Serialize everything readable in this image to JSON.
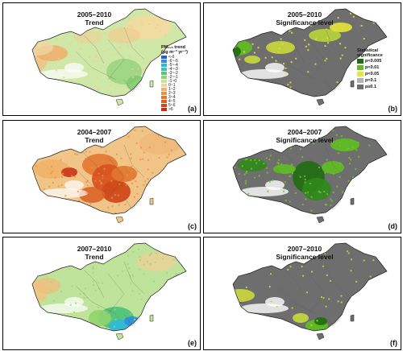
{
  "panels": [
    {
      "id": "a",
      "label": "(a)",
      "title_line1": "2005–2010",
      "title_line2": "Trend",
      "kind": "trend",
      "variant": "a"
    },
    {
      "id": "b",
      "label": "(b)",
      "title_line1": "2005–2010",
      "title_line2": "Significance level",
      "kind": "sig",
      "variant": "b"
    },
    {
      "id": "c",
      "label": "(c)",
      "title_line1": "2004–2007",
      "title_line2": "Trend",
      "kind": "trend",
      "variant": "c"
    },
    {
      "id": "d",
      "label": "(d)",
      "title_line1": "2004–2007",
      "title_line2": "Significance level",
      "kind": "sig",
      "variant": "d"
    },
    {
      "id": "e",
      "label": "(e)",
      "title_line1": "2007–2010",
      "title_line2": "Trend",
      "kind": "trend",
      "variant": "e"
    },
    {
      "id": "f",
      "label": "(f)",
      "title_line1": "2007–2010",
      "title_line2": "Significance level",
      "kind": "sig",
      "variant": "f"
    }
  ],
  "trend_legend": {
    "title_line1": "PM₂.₅ trend",
    "title_line2": "(μg m⁻³ yr⁻¹)",
    "items": [
      {
        "label": "<-6",
        "color": "#1f5fd6"
      },
      {
        "label": "-6~-5",
        "color": "#2b8fe0"
      },
      {
        "label": "-5~-4",
        "color": "#2fb9d8"
      },
      {
        "label": "-4~-3",
        "color": "#39c7b2"
      },
      {
        "label": "-3~-2",
        "color": "#56c773"
      },
      {
        "label": "-2~-1",
        "color": "#8fd46e"
      },
      {
        "label": "-1~0",
        "color": "#c4e49a"
      },
      {
        "label": "0~1",
        "color": "#f2d39c"
      },
      {
        "label": "1~2",
        "color": "#efb26a"
      },
      {
        "label": "2~3",
        "color": "#e99245"
      },
      {
        "label": "3~4",
        "color": "#e2762f"
      },
      {
        "label": "4~5",
        "color": "#db5d22"
      },
      {
        "label": "5~6",
        "color": "#d2441b"
      },
      {
        "label": ">6",
        "color": "#c72b14"
      }
    ]
  },
  "sig_legend": {
    "title_line1": "Statistical",
    "title_line2": "significance",
    "items": [
      {
        "label": "p<0.005",
        "color": "#1e6b10"
      },
      {
        "label": "p<0.01",
        "color": "#5fbf1f"
      },
      {
        "label": "p<0.05",
        "color": "#e6e63a"
      },
      {
        "label": "p<0.1",
        "color": "#b4b4b4"
      },
      {
        "label": "p≥0.1",
        "color": "#6e6e6e"
      }
    ]
  },
  "colors": {
    "sig_base": "#6e6e6e",
    "sig_dark": "#1e6b10",
    "sig_green": "#5fbf1f",
    "sig_yellow": "#e6e63a",
    "sea": "#ffffff",
    "border": "#222222"
  }
}
